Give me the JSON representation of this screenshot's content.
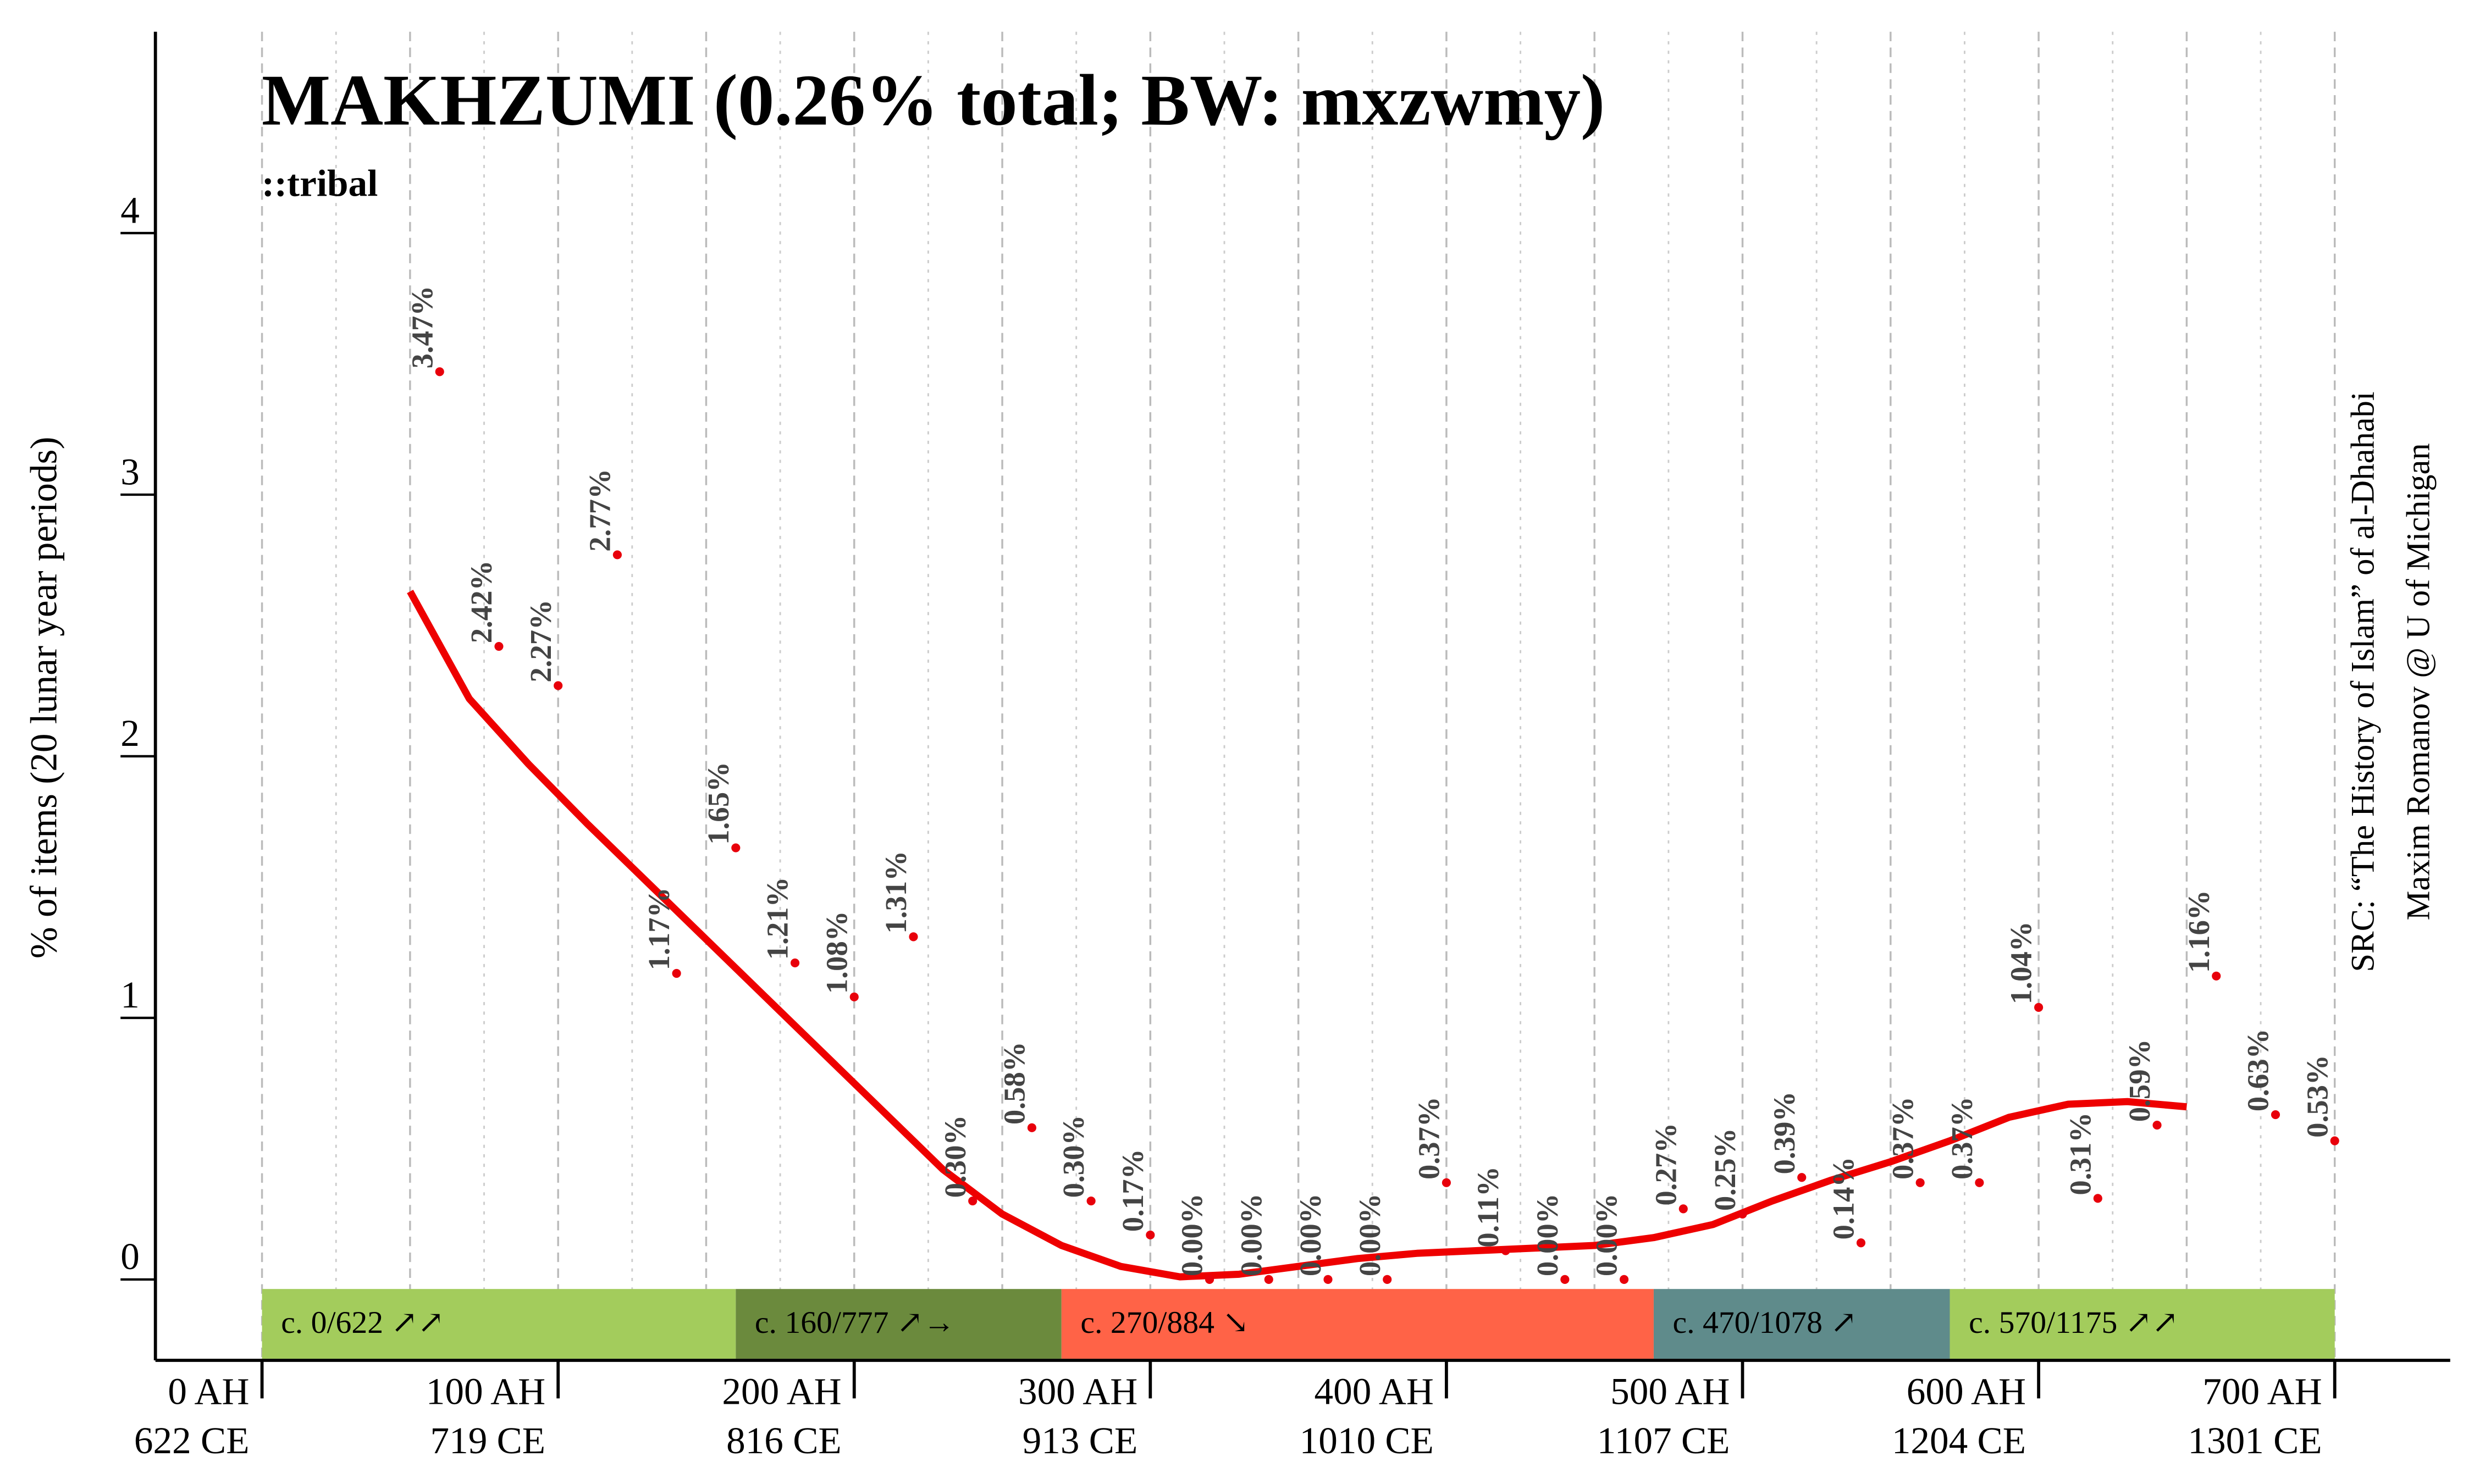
{
  "chart_data": {
    "type": "scatter",
    "title": "MAKHZUMI (0.26% total; BW: mxzwmy)",
    "subtitle": "::tribal",
    "y_label": "% of items (20 lunar year periods)",
    "source": [
      "SRC: “The History of Islam” of al-Dhahabi",
      "Maxim Romanov @ U of Michigan"
    ],
    "xlim": [
      -36,
      739
    ],
    "ylim": [
      -0.3,
      4.75
    ],
    "yticks": [
      0,
      1,
      2,
      3,
      4
    ],
    "xticks": [
      {
        "value": 0,
        "label": "0 AH"
      },
      {
        "value": 100,
        "label": "100 AH"
      },
      {
        "value": 200,
        "label": "200 AH"
      },
      {
        "value": 300,
        "label": "300 AH"
      },
      {
        "value": 400,
        "label": "400 AH"
      },
      {
        "value": 500,
        "label": "500 AH"
      },
      {
        "value": 600,
        "label": "600 AH"
      },
      {
        "value": 700,
        "label": "700 AH"
      }
    ],
    "xticks_ce": [
      "622 CE",
      "719 CE",
      "816 CE",
      "913 CE",
      "1010 CE",
      "1107 CE",
      "1204 CE",
      "1301 CE"
    ],
    "xgrid": [
      0,
      50,
      100,
      150,
      200,
      250,
      300,
      350,
      400,
      450,
      500,
      550,
      600,
      650,
      700
    ],
    "xgrid_minor": [
      25,
      75,
      125,
      175,
      225,
      275,
      325,
      375,
      425,
      475,
      525,
      575,
      625,
      675
    ],
    "points": {
      "color": "#e8000b",
      "x": [
        60,
        80,
        100,
        120,
        140,
        160,
        180,
        200,
        220,
        240,
        260,
        280,
        300,
        320,
        340,
        360,
        380,
        400,
        420,
        440,
        460,
        480,
        500,
        520,
        540,
        560,
        580,
        600,
        620,
        640,
        660,
        680,
        700
      ],
      "values": [
        3.47,
        2.42,
        2.27,
        2.77,
        1.17,
        1.65,
        1.21,
        1.08,
        1.31,
        0.3,
        0.58,
        0.3,
        0.17,
        0.0,
        0.0,
        0.0,
        0.0,
        0.37,
        0.11,
        0.0,
        0.0,
        0.27,
        0.25,
        0.39,
        0.14,
        0.37,
        0.37,
        1.04,
        0.31,
        0.59,
        1.16,
        0.63,
        0.53
      ],
      "value_labels": [
        "3.47%",
        "2.42%",
        "2.27%",
        "2.77%",
        "1.17%",
        "1.65%",
        "1.21%",
        "1.08%",
        "1.31%",
        "0.30%",
        "0.58%",
        "0.30%",
        "0.17%",
        "0.00%",
        "0.00%",
        "0.00%",
        "0.00%",
        "0.37%",
        "0.11%",
        "0.00%",
        "0.00%",
        "0.27%",
        "0.25%",
        "0.39%",
        "0.14%",
        "0.37%",
        "0.37%",
        "1.04%",
        "0.31%",
        "0.59%",
        "1.16%",
        "0.63%",
        "0.53%"
      ]
    },
    "trend": {
      "color": "#ee0000",
      "x": [
        50,
        70,
        90,
        110,
        130,
        150,
        170,
        190,
        210,
        230,
        250,
        270,
        290,
        310,
        330,
        350,
        370,
        390,
        410,
        430,
        450,
        470,
        490,
        510,
        530,
        550,
        570,
        590,
        610,
        630,
        650
      ],
      "values": [
        2.63,
        2.22,
        1.97,
        1.74,
        1.52,
        1.3,
        1.08,
        0.86,
        0.64,
        0.42,
        0.25,
        0.13,
        0.05,
        0.01,
        0.02,
        0.05,
        0.08,
        0.1,
        0.11,
        0.12,
        0.13,
        0.16,
        0.21,
        0.3,
        0.38,
        0.45,
        0.53,
        0.62,
        0.67,
        0.68,
        0.66
      ]
    },
    "periods": [
      {
        "label": "c. 0/622 ↗↗",
        "start": 0,
        "end": 160,
        "color": "#a3cc5c"
      },
      {
        "label": "c. 160/777 ↗→",
        "start": 160,
        "end": 270,
        "color": "#6b8a3d"
      },
      {
        "label": "c. 270/884 ↘",
        "start": 270,
        "end": 470,
        "color": "#ff6347"
      },
      {
        "label": "c. 470/1078 ↗",
        "start": 470,
        "end": 570,
        "color": "#5f8b8b"
      },
      {
        "label": "c. 570/1175 ↗↗",
        "start": 570,
        "end": 700,
        "color": "#a3cc5c"
      }
    ]
  }
}
